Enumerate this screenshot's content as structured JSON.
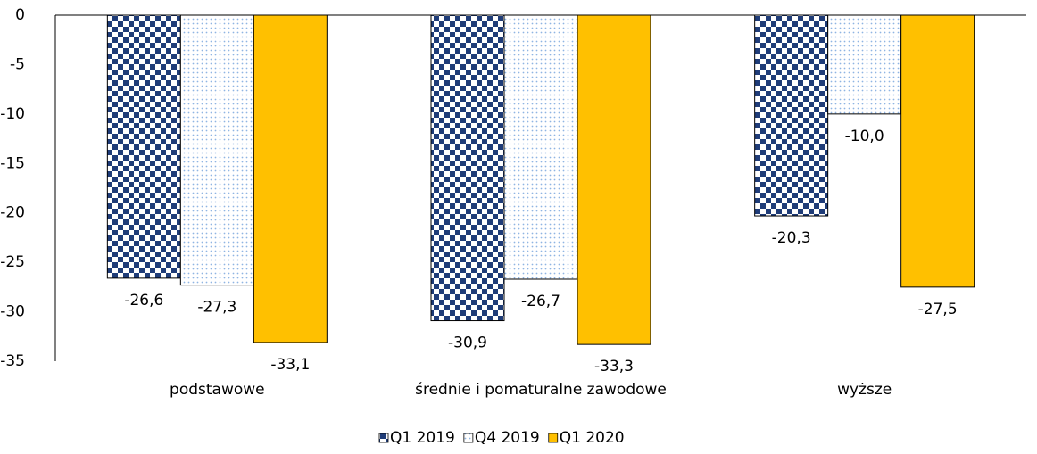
{
  "chart_data": {
    "type": "bar",
    "categories": [
      "podstawowe",
      "średnie i pomaturalne zawodowe",
      "wyższe"
    ],
    "series": [
      {
        "name": "Q1 2019",
        "color": "#1f3c78",
        "pattern": "checker",
        "values": [
          -26.6,
          -30.9,
          -20.3
        ],
        "value_labels": [
          "-26,6",
          "-30,9",
          "-20,3"
        ]
      },
      {
        "name": "Q4 2019",
        "color": "#8fb4e3",
        "pattern": "dots",
        "values": [
          -27.3,
          -26.7,
          -10.0
        ],
        "value_labels": [
          "-27,3",
          "-26,7",
          "-10,0"
        ]
      },
      {
        "name": "Q1 2020",
        "color": "#ffc000",
        "pattern": "solid",
        "values": [
          -33.1,
          -33.3,
          -27.5
        ],
        "value_labels": [
          "-33,1",
          "-33,3",
          "-27,5"
        ]
      }
    ],
    "ylim": [
      -35,
      0
    ],
    "yticks": [
      0,
      -5,
      -10,
      -15,
      -20,
      -25,
      -30,
      -35
    ],
    "grid": false,
    "legend": "bottom"
  }
}
